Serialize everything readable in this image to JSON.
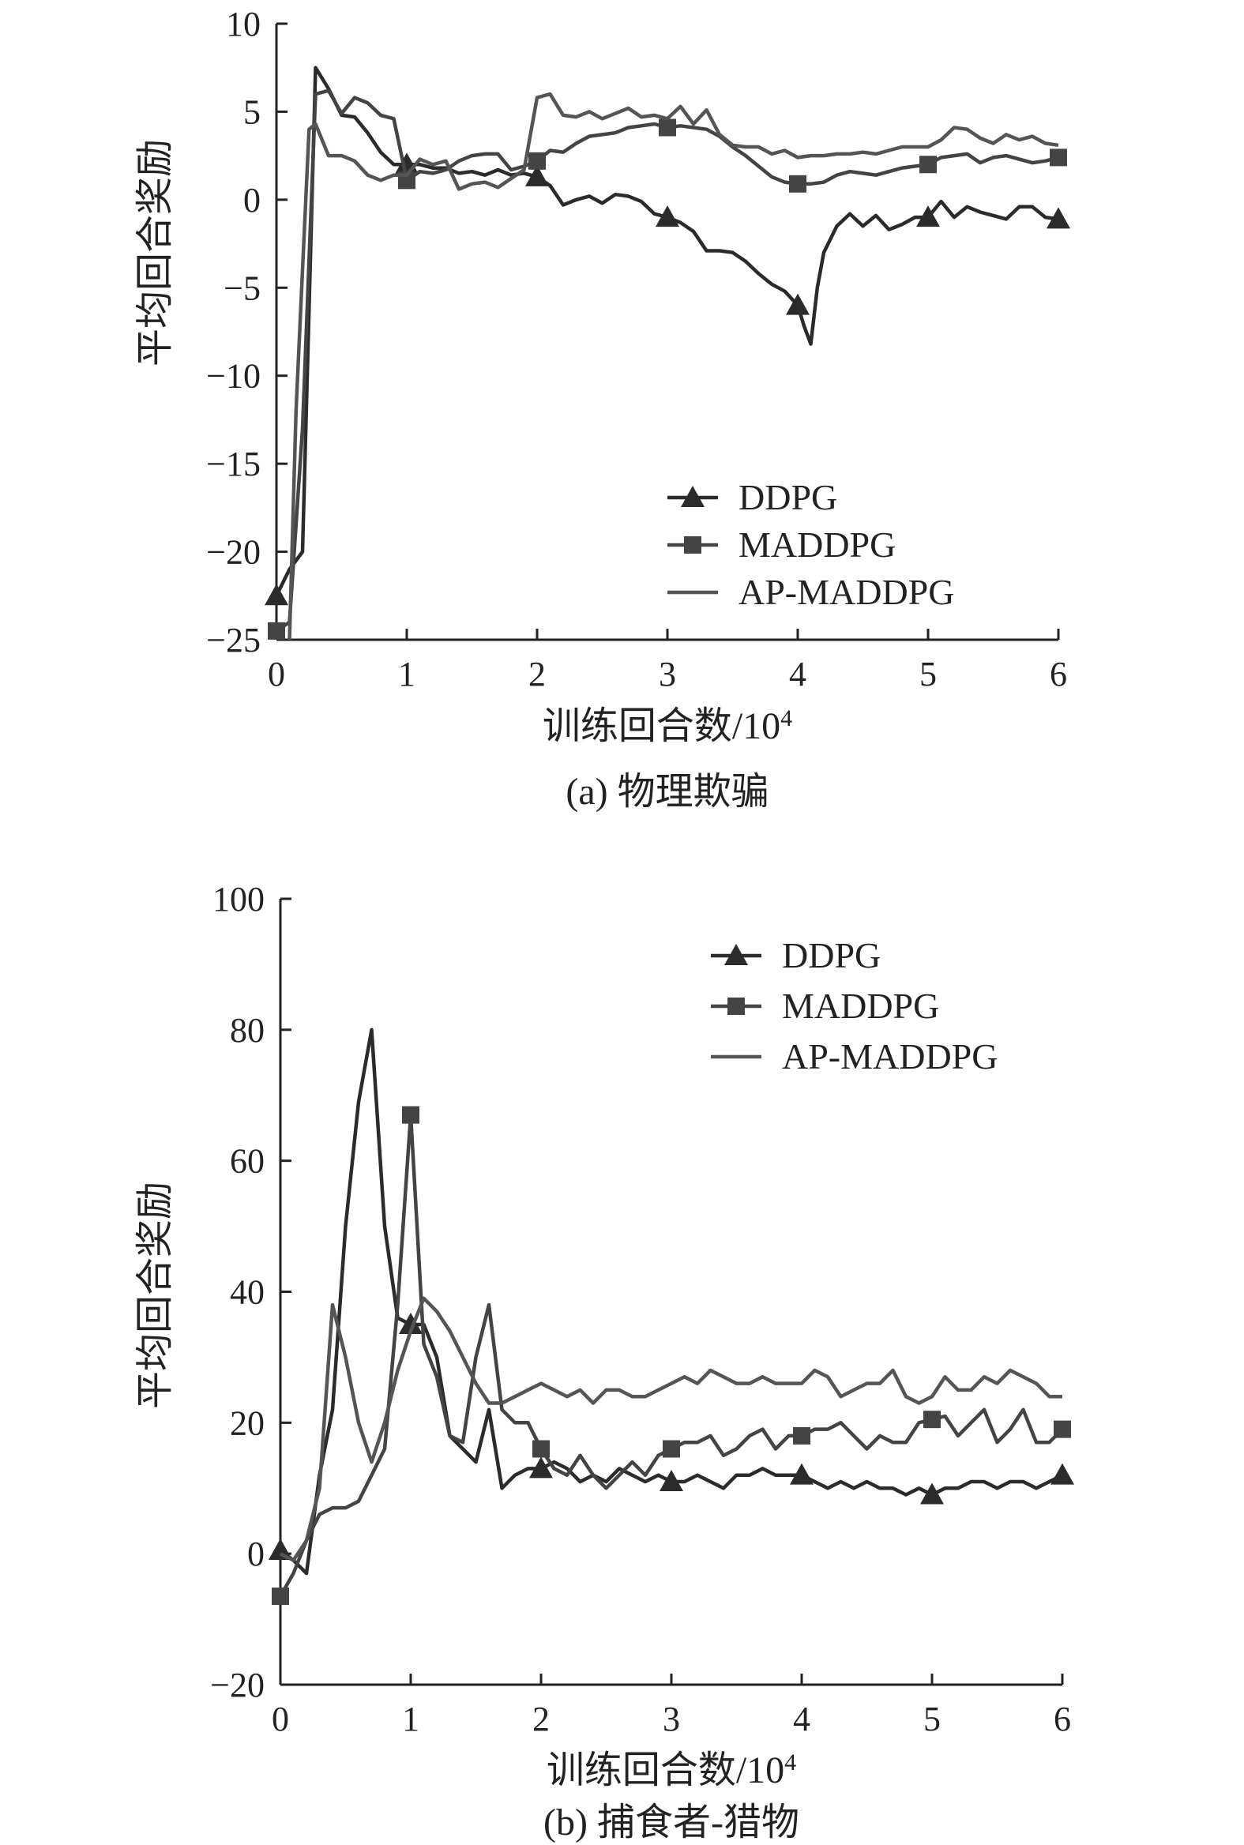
{
  "chart_data": [
    {
      "type": "line",
      "caption": "(a) 物理欺骗",
      "xlabel": "训练回合数/10",
      "xlabel_sup": "4",
      "ylabel": "平均回合奖励",
      "xlim": [
        0,
        6
      ],
      "ylim": [
        -25,
        10
      ],
      "xticks": [
        0,
        1,
        2,
        3,
        4,
        5,
        6
      ],
      "yticks": [
        -25,
        -20,
        -15,
        -10,
        -5,
        0,
        5,
        10
      ],
      "grid": false,
      "legend": "bottom-right",
      "series": [
        {
          "name": "DDPG",
          "marker": "triangle",
          "color": "#2b2b2b",
          "x": [
            0,
            0.1,
            0.2,
            0.3,
            0.4,
            0.5,
            0.6,
            0.7,
            0.8,
            0.9,
            1.0,
            1.1,
            1.2,
            1.3,
            1.4,
            1.5,
            1.6,
            1.7,
            1.8,
            1.9,
            2.0,
            2.1,
            2.2,
            2.3,
            2.4,
            2.5,
            2.6,
            2.7,
            2.8,
            2.9,
            3.0,
            3.1,
            3.2,
            3.3,
            3.4,
            3.5,
            3.6,
            3.7,
            3.8,
            3.9,
            4.0,
            4.05,
            4.1,
            4.15,
            4.2,
            4.3,
            4.4,
            4.5,
            4.6,
            4.7,
            4.8,
            4.9,
            5.0,
            5.1,
            5.2,
            5.3,
            5.4,
            5.5,
            5.6,
            5.7,
            5.8,
            5.9,
            6.0
          ],
          "y": [
            -22.5,
            -21,
            -20,
            7.5,
            6.3,
            4.8,
            4.7,
            3.8,
            2.7,
            2.0,
            2.0,
            2.0,
            1.8,
            1.8,
            1.5,
            1.6,
            1.4,
            1.7,
            1.4,
            1.5,
            1.3,
            0.8,
            -0.3,
            0.0,
            0.2,
            -0.2,
            0.3,
            0.2,
            -0.1,
            -0.8,
            -1.0,
            -1.3,
            -1.8,
            -2.9,
            -2.9,
            -3.0,
            -3.5,
            -4.2,
            -4.8,
            -5.2,
            -6.0,
            -7.2,
            -8.2,
            -5.0,
            -3.0,
            -1.5,
            -0.8,
            -1.5,
            -0.9,
            -1.7,
            -1.4,
            -1.0,
            -1.0,
            -0.1,
            -1.0,
            -0.4,
            -0.7,
            -0.9,
            -1.1,
            -0.4,
            -0.4,
            -1.0,
            -1.1
          ]
        },
        {
          "name": "MADDPG",
          "marker": "square",
          "color": "#444444",
          "x": [
            0,
            0.1,
            0.2,
            0.3,
            0.4,
            0.5,
            0.6,
            0.7,
            0.8,
            0.9,
            1.0,
            1.1,
            1.2,
            1.3,
            1.4,
            1.5,
            1.6,
            1.7,
            1.8,
            1.9,
            2.0,
            2.1,
            2.2,
            2.3,
            2.4,
            2.5,
            2.6,
            2.7,
            2.8,
            2.9,
            3.0,
            3.1,
            3.2,
            3.3,
            3.4,
            3.5,
            3.6,
            3.7,
            3.8,
            3.9,
            4.0,
            4.1,
            4.2,
            4.3,
            4.4,
            4.5,
            4.6,
            4.7,
            4.8,
            4.9,
            5.0,
            5.1,
            5.2,
            5.3,
            5.4,
            5.5,
            5.6,
            5.7,
            5.8,
            5.9,
            6.0
          ],
          "y": [
            -24.5,
            -24,
            -13,
            6.0,
            6.2,
            4.9,
            5.8,
            5.5,
            4.8,
            4.6,
            1.1,
            1.6,
            1.5,
            1.7,
            2.2,
            2.5,
            2.6,
            2.6,
            1.7,
            1.9,
            2.2,
            2.8,
            2.7,
            3.2,
            3.6,
            3.7,
            3.8,
            4.1,
            4.2,
            4.3,
            4.1,
            4.2,
            4.1,
            4.0,
            3.6,
            3.0,
            2.5,
            1.9,
            1.3,
            1.0,
            0.9,
            0.9,
            1.0,
            1.4,
            1.6,
            1.5,
            1.4,
            1.6,
            1.8,
            1.9,
            2.0,
            2.4,
            2.5,
            2.6,
            2.1,
            2.4,
            2.5,
            2.3,
            2.1,
            2.2,
            2.4
          ]
        },
        {
          "name": "AP-MADDPG",
          "marker": "none",
          "color": "#555555",
          "x": [
            0.1,
            0.15,
            0.2,
            0.25,
            0.3,
            0.4,
            0.5,
            0.6,
            0.7,
            0.8,
            0.9,
            1.0,
            1.1,
            1.2,
            1.3,
            1.4,
            1.5,
            1.6,
            1.7,
            1.8,
            1.9,
            2.0,
            2.1,
            2.2,
            2.3,
            2.4,
            2.5,
            2.6,
            2.7,
            2.8,
            2.9,
            3.0,
            3.1,
            3.2,
            3.3,
            3.4,
            3.5,
            3.6,
            3.7,
            3.8,
            3.9,
            4.0,
            4.1,
            4.2,
            4.3,
            4.4,
            4.5,
            4.6,
            4.7,
            4.8,
            4.9,
            5.0,
            5.1,
            5.2,
            5.3,
            5.4,
            5.5,
            5.6,
            5.7,
            5.8,
            5.9,
            6.0
          ],
          "y": [
            -25,
            -12,
            -4,
            4.0,
            4.3,
            2.5,
            2.5,
            2.2,
            1.4,
            1.1,
            1.4,
            1.4,
            2.3,
            2.0,
            2.2,
            0.6,
            0.9,
            1.0,
            0.7,
            1.2,
            1.7,
            5.8,
            6.0,
            4.8,
            4.7,
            5.0,
            4.6,
            4.9,
            5.2,
            4.7,
            4.8,
            4.6,
            5.3,
            4.3,
            5.1,
            3.7,
            3.1,
            3.0,
            3.0,
            2.6,
            2.8,
            2.4,
            2.5,
            2.5,
            2.6,
            2.6,
            2.7,
            2.6,
            2.8,
            3.0,
            3.0,
            3.0,
            3.4,
            4.1,
            4.0,
            3.5,
            3.2,
            3.7,
            3.4,
            3.6,
            3.2,
            3.1
          ]
        }
      ]
    },
    {
      "type": "line",
      "caption": "(b) 捕食者-猎物",
      "xlabel": "训练回合数/10",
      "xlabel_sup": "4",
      "ylabel": "平均回合奖励",
      "xlim": [
        0,
        6
      ],
      "ylim": [
        -20,
        100
      ],
      "xticks": [
        0,
        1,
        2,
        3,
        4,
        5,
        6
      ],
      "yticks": [
        -20,
        0,
        20,
        40,
        60,
        80,
        100
      ],
      "grid": false,
      "legend": "top-right",
      "series": [
        {
          "name": "DDPG",
          "marker": "triangle",
          "color": "#2b2b2b",
          "x": [
            0,
            0.1,
            0.2,
            0.3,
            0.4,
            0.5,
            0.6,
            0.7,
            0.8,
            0.9,
            1.0,
            1.1,
            1.2,
            1.3,
            1.4,
            1.5,
            1.6,
            1.7,
            1.8,
            1.9,
            2.0,
            2.1,
            2.2,
            2.3,
            2.4,
            2.5,
            2.6,
            2.7,
            2.8,
            2.9,
            3.0,
            3.1,
            3.2,
            3.3,
            3.4,
            3.5,
            3.6,
            3.7,
            3.8,
            3.9,
            4.0,
            4.1,
            4.2,
            4.3,
            4.4,
            4.5,
            4.6,
            4.7,
            4.8,
            4.9,
            5.0,
            5.1,
            5.2,
            5.3,
            5.4,
            5.5,
            5.6,
            5.7,
            5.8,
            5.9,
            6.0
          ],
          "y": [
            0.5,
            -1,
            -3,
            12,
            22,
            50,
            69,
            80,
            50,
            36,
            35,
            35,
            30,
            18,
            16,
            14,
            22,
            10,
            12,
            13,
            13,
            14,
            13,
            11,
            12,
            11,
            13,
            12,
            11,
            12,
            11,
            11,
            12,
            11,
            10,
            12,
            12,
            13,
            12,
            12,
            12,
            11,
            10,
            11,
            10,
            11,
            10,
            10,
            9,
            10,
            9,
            10,
            10,
            11,
            11,
            10,
            11,
            11,
            10,
            11,
            12
          ]
        },
        {
          "name": "MADDPG",
          "marker": "square",
          "color": "#444444",
          "x": [
            0,
            0.1,
            0.2,
            0.3,
            0.4,
            0.5,
            0.6,
            0.7,
            0.8,
            0.9,
            1.0,
            1.1,
            1.2,
            1.3,
            1.4,
            1.5,
            1.6,
            1.7,
            1.8,
            1.9,
            2.0,
            2.1,
            2.2,
            2.3,
            2.4,
            2.5,
            2.6,
            2.7,
            2.8,
            2.9,
            3.0,
            3.1,
            3.2,
            3.3,
            3.4,
            3.5,
            3.6,
            3.7,
            3.8,
            3.9,
            4.0,
            4.1,
            4.2,
            4.3,
            4.4,
            4.5,
            4.6,
            4.7,
            4.8,
            4.9,
            5.0,
            5.1,
            5.2,
            5.3,
            5.4,
            5.5,
            5.6,
            5.7,
            5.8,
            5.9,
            6.0
          ],
          "y": [
            -6.5,
            -3,
            2,
            6,
            7,
            7,
            8,
            12,
            16,
            38,
            67,
            32,
            27,
            18,
            17,
            30,
            38,
            22,
            20,
            20,
            16,
            13,
            12,
            15,
            12,
            10,
            12,
            14,
            12,
            15,
            16,
            17,
            17,
            18,
            15,
            16,
            18,
            19,
            16,
            18,
            18,
            19,
            19,
            20,
            18,
            16,
            18,
            17,
            17,
            20,
            20.5,
            21,
            18,
            20,
            22,
            17,
            19,
            22,
            17,
            17,
            19
          ]
        },
        {
          "name": "AP-MADDPG",
          "marker": "none",
          "color": "#555555",
          "x": [
            0,
            0.1,
            0.2,
            0.3,
            0.4,
            0.5,
            0.6,
            0.7,
            0.8,
            0.9,
            1.0,
            1.1,
            1.2,
            1.3,
            1.4,
            1.5,
            1.6,
            1.7,
            1.8,
            1.9,
            2.0,
            2.1,
            2.2,
            2.3,
            2.4,
            2.5,
            2.6,
            2.7,
            2.8,
            2.9,
            3.0,
            3.1,
            3.2,
            3.3,
            3.4,
            3.5,
            3.6,
            3.7,
            3.8,
            3.9,
            4.0,
            4.1,
            4.2,
            4.3,
            4.4,
            4.5,
            4.6,
            4.7,
            4.8,
            4.9,
            5.0,
            5.1,
            5.2,
            5.3,
            5.4,
            5.5,
            5.6,
            5.7,
            5.8,
            5.9,
            6.0
          ],
          "y": [
            0,
            -1,
            2,
            10,
            38,
            30,
            20,
            14,
            20,
            28,
            34,
            39,
            37,
            34,
            30,
            26,
            23,
            23,
            24,
            25,
            26,
            25,
            24,
            25,
            23,
            25,
            25,
            24,
            24,
            25,
            26,
            27,
            26,
            28,
            27,
            26,
            26,
            27,
            26,
            26,
            26,
            28,
            27,
            24,
            25,
            26,
            26,
            28,
            24,
            23,
            24,
            27,
            25,
            25,
            27,
            26,
            28,
            27,
            26,
            24,
            24
          ]
        }
      ]
    }
  ]
}
